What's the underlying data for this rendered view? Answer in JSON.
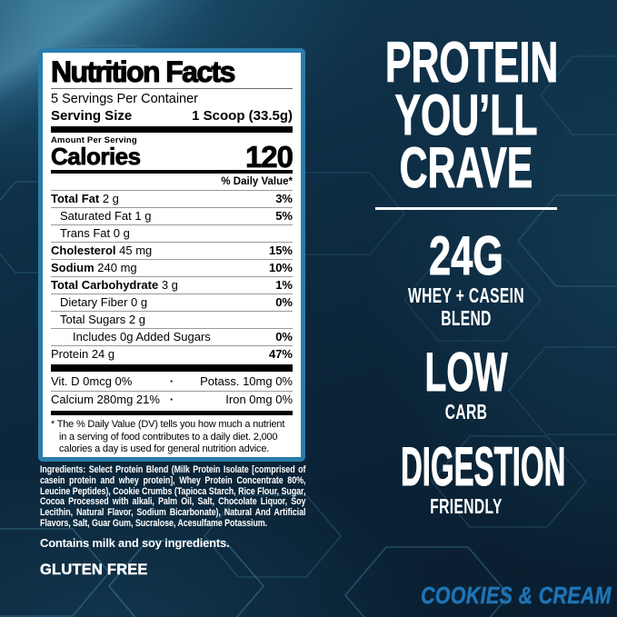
{
  "colors": {
    "label_border_blue": "#2a7dab",
    "flavor_blue": "#1e74b6",
    "background_navy": "#0b2438",
    "label_background": "#ffffff",
    "label_text": "#000000",
    "body_text": "#ffffff"
  },
  "label": {
    "title": "Nutrition Facts",
    "servings_per_container": "5 Servings Per Container",
    "serving_size_label": "Serving Size",
    "serving_size_value": "1 Scoop (33.5g)",
    "amount_per_serving": "Amount Per Serving",
    "calories_label": "Calories",
    "calories_value": "120",
    "daily_value_header": "% Daily Value*",
    "rows": [
      {
        "name": "Total Fat",
        "amount": "2 g",
        "dv": "3%",
        "bold": true,
        "indent": 0
      },
      {
        "name": "Saturated Fat",
        "amount": "1 g",
        "dv": "5%",
        "bold": false,
        "indent": 1
      },
      {
        "name": "Trans Fat",
        "amount": "0 g",
        "dv": "",
        "bold": false,
        "indent": 1
      },
      {
        "name": "Cholesterol",
        "amount": "45 mg",
        "dv": "15%",
        "bold": true,
        "indent": 0
      },
      {
        "name": "Sodium",
        "amount": "240 mg",
        "dv": "10%",
        "bold": true,
        "indent": 0
      },
      {
        "name": "Total Carbohydrate",
        "amount": "3 g",
        "dv": "1%",
        "bold": true,
        "indent": 0
      },
      {
        "name": "Dietary Fiber",
        "amount": "0 g",
        "dv": "0%",
        "bold": false,
        "indent": 1
      },
      {
        "name": "Total Sugars",
        "amount": "2 g",
        "dv": "",
        "bold": false,
        "indent": 1
      },
      {
        "name": "Includes 0g Added Sugars",
        "amount": "",
        "dv": "0%",
        "bold": false,
        "indent": 2
      },
      {
        "name": "Protein",
        "amount": "24 g",
        "dv": "47%",
        "bold": false,
        "indent": 0
      }
    ],
    "bullet": "·",
    "micronutrients": [
      {
        "left": "Vit. D 0mcg 0%",
        "right": "Potass. 10mg 0%"
      },
      {
        "left": "Calcium 280mg 21%",
        "right": "Iron 0mg 0%"
      }
    ],
    "footnote": "* The % Daily Value (DV) tells you how much a nutrient in a serving of food contributes to a daily diet. 2,000 calories a day is used for general nutrition advice."
  },
  "ingredients": {
    "label": "Ingredients:",
    "body": " Select Protein Blend (Milk Protein Isolate [comprised of casein protein and whey protein], Whey Protein Concentrate 80%, Leucine Peptides), Cookie Crumbs (Tapioca Starch, Rice Flour, Sugar, Cocoa Processed with alkali, Palm Oil, Salt, Chocolate Liquor, Soy Lecithin, Natural Flavor, Sodium Bicarbonate), Natural And Artificial Flavors, Salt, Guar Gum, Sucralose, Acesulfame Potassium.",
    "contains": "Contains milk and soy ingredients.",
    "gluten_free": "GLUTEN FREE"
  },
  "right": {
    "headline_lines": [
      "PROTEIN",
      "YOU’LL",
      "CRAVE"
    ],
    "features": [
      {
        "big": "24G",
        "sub1": "WHEY + CASEIN",
        "sub2": "BLEND"
      },
      {
        "big": "LOW",
        "sub1": "CARB"
      },
      {
        "big": "DIGESTION",
        "sub1": "FRIENDLY"
      }
    ],
    "flavor": "COOKIES & CREAM"
  }
}
